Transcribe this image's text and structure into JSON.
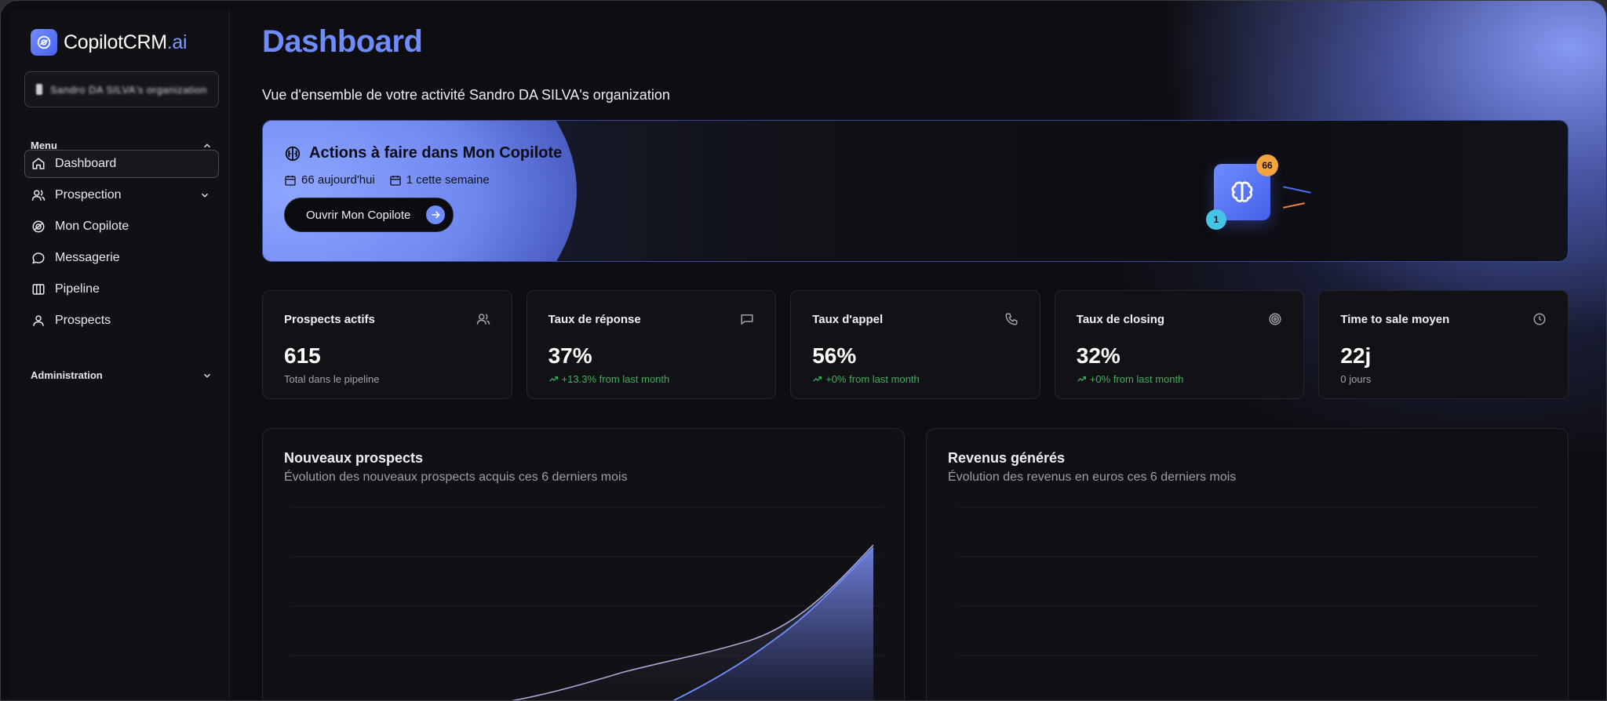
{
  "brand": {
    "name": "CopilotCRM",
    "suffix": ".ai"
  },
  "org_selector": {
    "value": "Sandro DA SILVA's organization"
  },
  "sidebar": {
    "menu_label": "Menu",
    "items": [
      {
        "label": "Dashboard",
        "icon": "home-icon",
        "active": true
      },
      {
        "label": "Prospection",
        "icon": "users-icon",
        "expandable": true
      },
      {
        "label": "Mon Copilote",
        "icon": "copilot-icon"
      },
      {
        "label": "Messagerie",
        "icon": "chat-bubble-icon"
      },
      {
        "label": "Pipeline",
        "icon": "columns-icon"
      },
      {
        "label": "Prospects",
        "icon": "user-icon"
      }
    ],
    "admin_label": "Administration"
  },
  "header": {
    "title": "Dashboard",
    "subtitle": "Vue d'ensemble de votre activité Sandro DA SILVA's organization"
  },
  "banner": {
    "title": "Actions à faire dans Mon Copilote",
    "today": "66 aujourd'hui",
    "week": "1 cette semaine",
    "button": "Ouvrir Mon Copilote",
    "badge_count_top": "66",
    "badge_count_bottom": "1"
  },
  "stats": [
    {
      "title": "Prospects actifs",
      "value": "615",
      "note": "Total dans le pipeline",
      "trend": false,
      "icon": "users-icon"
    },
    {
      "title": "Taux de réponse",
      "value": "37%",
      "note": "+13.3% from last month",
      "trend": true,
      "icon": "message-square-icon"
    },
    {
      "title": "Taux d'appel",
      "value": "56%",
      "note": "+0% from last month",
      "trend": true,
      "icon": "phone-icon"
    },
    {
      "title": "Taux de closing",
      "value": "32%",
      "note": "+0% from last month",
      "trend": true,
      "icon": "target-icon"
    },
    {
      "title": "Time to sale moyen",
      "value": "22j",
      "note": "0 jours",
      "trend": false,
      "icon": "clock-icon"
    }
  ],
  "charts": {
    "prospects": {
      "title": "Nouveaux prospects",
      "subtitle": "Évolution des nouveaux prospects acquis ces 6 derniers mois"
    },
    "revenue": {
      "title": "Revenus générés",
      "subtitle": "Évolution des revenus en euros ces 6 derniers mois"
    }
  },
  "colors": {
    "accent": "#6f8cff",
    "trend_up": "#3fae5e",
    "badge_orange": "#f5a53e",
    "badge_cyan": "#45c4e6"
  }
}
